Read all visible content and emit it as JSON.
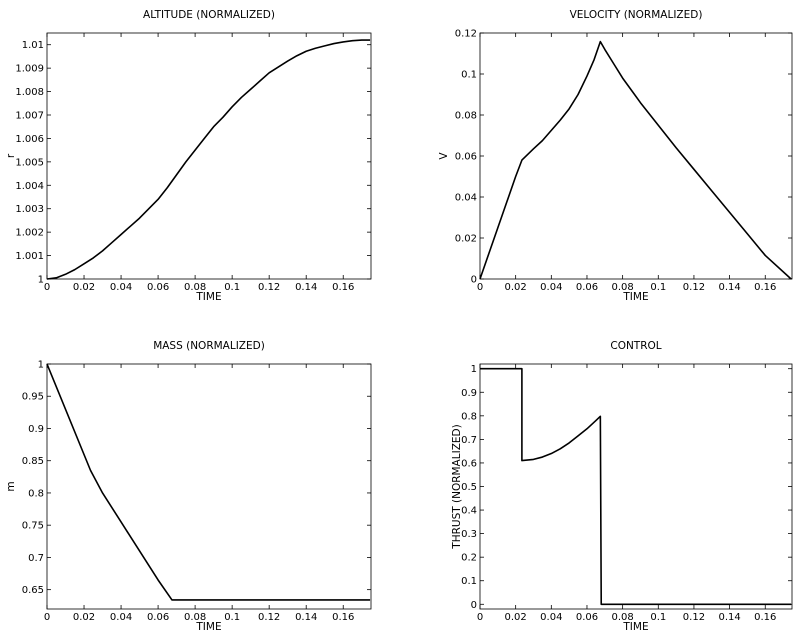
{
  "chart_data": [
    {
      "type": "line",
      "title": "ALTITUDE (NORMALIZED)",
      "xlabel": "TIME",
      "ylabel": "r",
      "xlim": [
        0,
        0.175
      ],
      "ylim": [
        1,
        1.0105
      ],
      "xticks": [
        0,
        0.02,
        0.04,
        0.06,
        0.08,
        0.1,
        0.12,
        0.14,
        0.16
      ],
      "xtick_labels": [
        "0",
        "0.02",
        "0.04",
        "0.06",
        "0.08",
        "0.1",
        "0.12",
        "0.14",
        "0.16"
      ],
      "yticks": [
        1,
        1.001,
        1.002,
        1.003,
        1.004,
        1.005,
        1.006,
        1.007,
        1.008,
        1.009,
        1.01
      ],
      "ytick_labels": [
        "1",
        "1.001",
        "1.002",
        "1.003",
        "1.004",
        "1.005",
        "1.006",
        "1.007",
        "1.008",
        "1.009",
        "1.01"
      ],
      "grid": false,
      "series": [
        {
          "x": [
            0,
            0.005,
            0.01,
            0.015,
            0.02,
            0.025,
            0.03,
            0.035,
            0.04,
            0.045,
            0.05,
            0.055,
            0.06,
            0.065,
            0.07,
            0.075,
            0.08,
            0.085,
            0.09,
            0.095,
            0.1,
            0.105,
            0.11,
            0.115,
            0.12,
            0.125,
            0.13,
            0.135,
            0.14,
            0.145,
            0.15,
            0.155,
            0.16,
            0.165,
            0.17,
            0.1745
          ],
          "y": [
            1.0,
            1.00005,
            1.0002,
            1.0004,
            1.00065,
            1.0009,
            1.0012,
            1.00155,
            1.0019,
            1.00225,
            1.0026,
            1.003,
            1.0034,
            1.0039,
            1.00445,
            1.005,
            1.0055,
            1.006,
            1.0065,
            1.0069,
            1.00735,
            1.00775,
            1.0081,
            1.00845,
            1.0088,
            1.00905,
            1.0093,
            1.00953,
            1.00972,
            1.00985,
            1.00995,
            1.01005,
            1.01012,
            1.01017,
            1.0102,
            1.0102
          ]
        }
      ]
    },
    {
      "type": "line",
      "title": "VELOCITY (NORMALIZED)",
      "xlabel": "TIME",
      "ylabel": "V",
      "xlim": [
        0,
        0.175
      ],
      "ylim": [
        0,
        0.12
      ],
      "xticks": [
        0,
        0.02,
        0.04,
        0.06,
        0.08,
        0.1,
        0.12,
        0.14,
        0.16
      ],
      "xtick_labels": [
        "0",
        "0.02",
        "0.04",
        "0.06",
        "0.08",
        "0.1",
        "0.12",
        "0.14",
        "0.16"
      ],
      "yticks": [
        0,
        0.02,
        0.04,
        0.06,
        0.08,
        0.1,
        0.12
      ],
      "ytick_labels": [
        "0",
        "0.02",
        "0.04",
        "0.06",
        "0.08",
        "0.1",
        "0.12"
      ],
      "grid": false,
      "series": [
        {
          "x": [
            0,
            0.005,
            0.01,
            0.015,
            0.02,
            0.0235,
            0.03,
            0.035,
            0.04,
            0.045,
            0.05,
            0.055,
            0.06,
            0.064,
            0.0675,
            0.07,
            0.075,
            0.08,
            0.09,
            0.1,
            0.11,
            0.12,
            0.13,
            0.14,
            0.15,
            0.16,
            0.1745
          ],
          "y": [
            0,
            0.0125,
            0.025,
            0.0375,
            0.05,
            0.058,
            0.0635,
            0.0675,
            0.0725,
            0.0775,
            0.083,
            0.09,
            0.099,
            0.107,
            0.1158,
            0.112,
            0.105,
            0.098,
            0.086,
            0.075,
            0.064,
            0.0535,
            0.043,
            0.0325,
            0.022,
            0.0115,
            0
          ]
        }
      ]
    },
    {
      "type": "line",
      "title": "MASS (NORMALIZED)",
      "xlabel": "TIME",
      "ylabel": "m",
      "xlim": [
        0,
        0.175
      ],
      "ylim": [
        0.62,
        1.0
      ],
      "xticks": [
        0,
        0.02,
        0.04,
        0.06,
        0.08,
        0.1,
        0.12,
        0.14,
        0.16
      ],
      "xtick_labels": [
        "0",
        "0.02",
        "0.04",
        "0.06",
        "0.08",
        "0.1",
        "0.12",
        "0.14",
        "0.16"
      ],
      "yticks": [
        0.65,
        0.7,
        0.75,
        0.8,
        0.85,
        0.9,
        0.95,
        1.0
      ],
      "ytick_labels": [
        "0.65",
        "0.7",
        "0.75",
        "0.8",
        "0.85",
        "0.9",
        "0.95",
        "1"
      ],
      "grid": false,
      "series": [
        {
          "x": [
            0,
            0.0235,
            0.03,
            0.04,
            0.05,
            0.06,
            0.0675,
            0.1745
          ],
          "y": [
            1.0,
            0.835,
            0.8,
            0.755,
            0.71,
            0.665,
            0.634,
            0.634
          ]
        }
      ]
    },
    {
      "type": "line",
      "title": "CONTROL",
      "xlabel": "TIME",
      "ylabel": "THRUST (NORMALIZED)",
      "xlim": [
        0,
        0.175
      ],
      "ylim": [
        -0.02,
        1.02
      ],
      "xticks": [
        0,
        0.02,
        0.04,
        0.06,
        0.08,
        0.1,
        0.12,
        0.14,
        0.16
      ],
      "xtick_labels": [
        "0",
        "0.02",
        "0.04",
        "0.06",
        "0.08",
        "0.1",
        "0.12",
        "0.14",
        "0.16"
      ],
      "yticks": [
        0,
        0.1,
        0.2,
        0.3,
        0.4,
        0.5,
        0.6,
        0.7,
        0.8,
        0.9,
        1.0
      ],
      "ytick_labels": [
        "0",
        "0.1",
        "0.2",
        "0.3",
        "0.4",
        "0.5",
        "0.6",
        "0.7",
        "0.8",
        "0.9",
        "1"
      ],
      "grid": false,
      "series": [
        {
          "x": [
            0,
            0.0235,
            0.0235,
            0.03,
            0.035,
            0.04,
            0.045,
            0.05,
            0.055,
            0.06,
            0.065,
            0.0675,
            0.068,
            0.1745
          ],
          "y": [
            1.0,
            1.0,
            0.61,
            0.615,
            0.625,
            0.64,
            0.66,
            0.685,
            0.715,
            0.745,
            0.78,
            0.798,
            0,
            0
          ]
        }
      ]
    }
  ]
}
